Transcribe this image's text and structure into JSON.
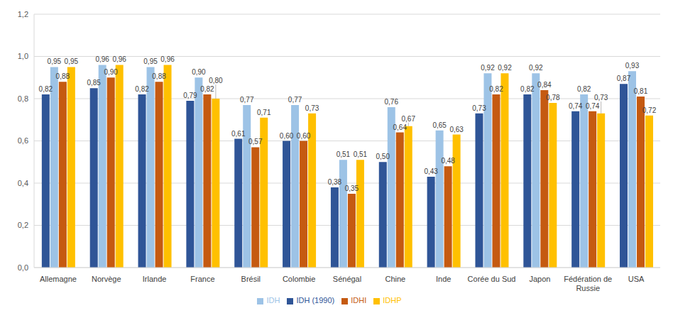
{
  "chart_data": {
    "type": "bar",
    "categories": [
      "Allemagne",
      "Norvège",
      "Irlande",
      "France",
      "Brésil",
      "Colombie",
      "Sénégal",
      "Chine",
      "Inde",
      "Corée du Sud",
      "Japon",
      "Fédération de Russie",
      "USA"
    ],
    "series": [
      {
        "name": "IDH (1990)",
        "color": "#2f5597",
        "values": [
          0.82,
          0.85,
          0.82,
          0.79,
          0.61,
          0.6,
          0.38,
          0.5,
          0.43,
          0.73,
          0.82,
          0.74,
          0.87
        ],
        "value_labels": [
          "0,82",
          "0,85",
          "0,82",
          "0,79",
          "0,61",
          "0,60",
          "0,38",
          "0,50",
          "0,43",
          "0,73",
          "0,82",
          "0,74",
          "0,87"
        ]
      },
      {
        "name": "IDH",
        "color": "#9dc3e6",
        "values": [
          0.95,
          0.96,
          0.95,
          0.9,
          0.77,
          0.77,
          0.51,
          0.76,
          0.65,
          0.92,
          0.92,
          0.82,
          0.93
        ],
        "value_labels": [
          "0,95",
          "0,96",
          "0,95",
          "0,90",
          "0,77",
          "0,77",
          "0,51",
          "0,76",
          "0,65",
          "0,92",
          "0,92",
          "0,82",
          "0,93"
        ]
      },
      {
        "name": "IDHI",
        "color": "#c55a11",
        "values": [
          0.88,
          0.9,
          0.88,
          0.82,
          0.57,
          0.6,
          0.35,
          0.64,
          0.48,
          0.82,
          0.84,
          0.74,
          0.81
        ],
        "value_labels": [
          "0,88",
          "0,90",
          "0,88",
          "0,82",
          "0,57",
          "0,60",
          "0,35",
          "0,64",
          "0,48",
          "0,82",
          "0,84",
          "0,74",
          "0,81"
        ]
      },
      {
        "name": "IDHP",
        "color": "#ffc000",
        "values": [
          0.95,
          0.96,
          0.96,
          0.8,
          0.71,
          0.73,
          0.51,
          0.67,
          0.63,
          0.92,
          0.78,
          0.73,
          0.72
        ],
        "value_labels": [
          "0,95",
          "0,96",
          "0,96",
          "0,80",
          "0,71",
          "0,73",
          "0,51",
          "0,67",
          "0,63",
          "0,92",
          "0,78",
          "0,73",
          "0,72"
        ]
      }
    ],
    "ylim": [
      0,
      1.2
    ],
    "yticks": [
      {
        "value": 0,
        "label": "0,0"
      },
      {
        "value": 0.2,
        "label": "0,2"
      },
      {
        "value": 0.4,
        "label": "0,4"
      },
      {
        "value": 0.6,
        "label": "0,6"
      },
      {
        "value": 0.8,
        "label": "0,8"
      },
      {
        "value": 1.0,
        "label": "1,0"
      },
      {
        "value": 1.2,
        "label": "1,2"
      }
    ],
    "grid": true,
    "legend": "bottom",
    "data_labels": true
  }
}
